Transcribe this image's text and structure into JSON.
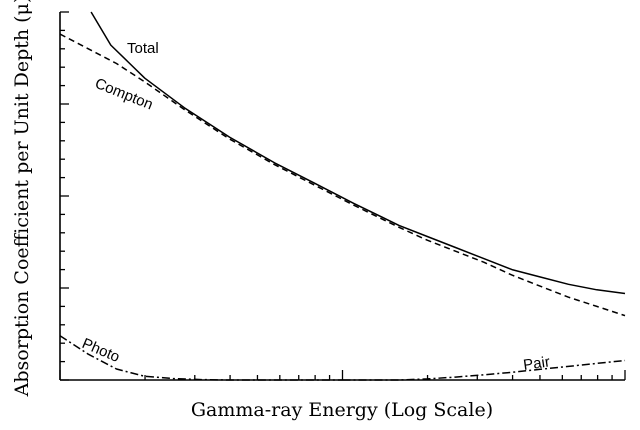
{
  "chart_data": {
    "type": "line",
    "xlabel": "Gamma-ray Energy (Log Scale)",
    "ylabel": "Absorption Coefficient per Unit Depth (μ)",
    "x_scale": "log",
    "x_tick_labels": [],
    "y_tick_labels": [],
    "xlim": [
      0,
      1
    ],
    "ylim": [
      0,
      1
    ],
    "grid": false,
    "legend": "none",
    "colors": {
      "line": "#000000",
      "axis": "#000000",
      "background": "#ffffff"
    },
    "series": [
      {
        "name": "Total",
        "style": "solid",
        "x": [
          0.055,
          0.09,
          0.15,
          0.22,
          0.3,
          0.38,
          0.45,
          0.52,
          0.6,
          0.65,
          0.7,
          0.75,
          0.8,
          0.85,
          0.9,
          0.95,
          1.0
        ],
        "y": [
          1.0,
          0.91,
          0.82,
          0.74,
          0.66,
          0.59,
          0.535,
          0.48,
          0.42,
          0.39,
          0.36,
          0.33,
          0.3,
          0.28,
          0.26,
          0.245,
          0.235
        ]
      },
      {
        "name": "Compton",
        "style": "dashed",
        "x": [
          0.0,
          0.05,
          0.1,
          0.15,
          0.22,
          0.3,
          0.38,
          0.45,
          0.52,
          0.6,
          0.65,
          0.7,
          0.75,
          0.8,
          0.85,
          0.9,
          0.95,
          1.0
        ],
        "y": [
          0.94,
          0.9,
          0.86,
          0.81,
          0.735,
          0.655,
          0.585,
          0.53,
          0.475,
          0.415,
          0.38,
          0.35,
          0.32,
          0.285,
          0.255,
          0.225,
          0.2,
          0.175
        ]
      },
      {
        "name": "Photo",
        "style": "dashdot",
        "x": [
          0.0,
          0.05,
          0.1,
          0.15,
          0.2,
          0.25,
          0.3,
          0.35,
          0.4,
          0.45,
          0.5
        ],
        "y": [
          0.12,
          0.07,
          0.03,
          0.01,
          0.004,
          0.001,
          0.0,
          0.0,
          0.0,
          0.0,
          0.0
        ]
      },
      {
        "name": "Pair",
        "style": "dashdot",
        "x": [
          0.5,
          0.6,
          0.65,
          0.7,
          0.75,
          0.8,
          0.85,
          0.9,
          0.95,
          1.0
        ],
        "y": [
          0.0,
          0.0,
          0.003,
          0.008,
          0.014,
          0.021,
          0.029,
          0.037,
          0.045,
          0.053
        ]
      }
    ]
  }
}
